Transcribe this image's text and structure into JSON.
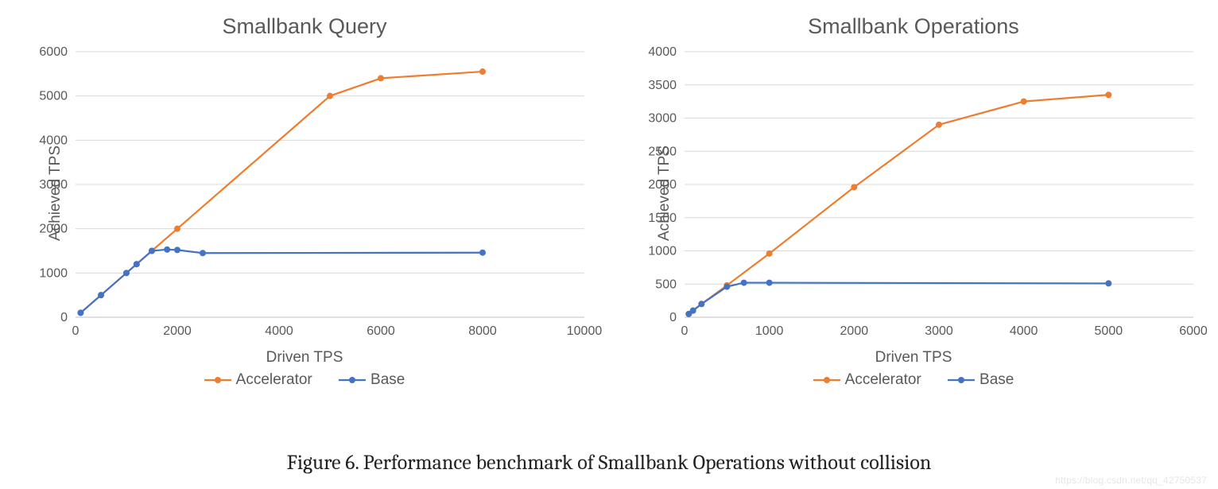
{
  "caption": "Figure 6. Performance benchmark of Smallbank Operations without collision",
  "watermark": "https://blog.csdn.net/qq_42750537",
  "colors": {
    "accelerator": "#ed7d31",
    "base": "#4472c4",
    "grid": "#d9d9d9",
    "axis_text": "#595959",
    "plot_border": "#bfbfbf",
    "page_bg": "#ffffff"
  },
  "legend": {
    "accelerator": "Accelerator",
    "base": "Base"
  },
  "chart_left": {
    "title": "Smallbank Query",
    "xlabel": "Driven TPS",
    "ylabel": "Achieved TPS",
    "type": "line",
    "xlim": [
      0,
      10000
    ],
    "ylim": [
      0,
      6000
    ],
    "xtick_step": 2000,
    "ytick_step": 1000,
    "xticks": [
      0,
      2000,
      4000,
      6000,
      8000,
      10000
    ],
    "yticks": [
      0,
      1000,
      2000,
      3000,
      4000,
      5000,
      6000
    ],
    "tick_fontsize": 16,
    "title_fontsize": 27,
    "label_fontsize": 19,
    "line_width": 2.2,
    "marker_radius": 4,
    "grid_color": "#d9d9d9",
    "background_color": "#ffffff",
    "series": {
      "accelerator": {
        "label": "Accelerator",
        "color": "#ed7d31",
        "marker": "circle",
        "data": [
          {
            "x": 100,
            "y": 100
          },
          {
            "x": 500,
            "y": 500
          },
          {
            "x": 1000,
            "y": 1000
          },
          {
            "x": 1200,
            "y": 1200
          },
          {
            "x": 1500,
            "y": 1500
          },
          {
            "x": 2000,
            "y": 2000
          },
          {
            "x": 5000,
            "y": 5000
          },
          {
            "x": 6000,
            "y": 5400
          },
          {
            "x": 8000,
            "y": 5550
          }
        ]
      },
      "base": {
        "label": "Base",
        "color": "#4472c4",
        "marker": "circle",
        "data": [
          {
            "x": 100,
            "y": 100
          },
          {
            "x": 500,
            "y": 500
          },
          {
            "x": 1000,
            "y": 1000
          },
          {
            "x": 1200,
            "y": 1200
          },
          {
            "x": 1500,
            "y": 1500
          },
          {
            "x": 1800,
            "y": 1530
          },
          {
            "x": 2000,
            "y": 1520
          },
          {
            "x": 2500,
            "y": 1450
          },
          {
            "x": 8000,
            "y": 1460
          }
        ]
      }
    }
  },
  "chart_right": {
    "title": "Smallbank Operations",
    "xlabel": "Driven TPS",
    "ylabel": "Achieved TPS",
    "type": "line",
    "xlim": [
      0,
      6000
    ],
    "ylim": [
      0,
      4000
    ],
    "xtick_step": 1000,
    "ytick_step": 500,
    "xticks": [
      0,
      1000,
      2000,
      3000,
      4000,
      5000,
      6000
    ],
    "yticks": [
      0,
      500,
      1000,
      1500,
      2000,
      2500,
      3000,
      3500,
      4000
    ],
    "tick_fontsize": 16,
    "title_fontsize": 27,
    "label_fontsize": 19,
    "line_width": 2.2,
    "marker_radius": 4,
    "grid_color": "#d9d9d9",
    "background_color": "#ffffff",
    "series": {
      "accelerator": {
        "label": "Accelerator",
        "color": "#ed7d31",
        "marker": "circle",
        "data": [
          {
            "x": 50,
            "y": 50
          },
          {
            "x": 100,
            "y": 100
          },
          {
            "x": 200,
            "y": 200
          },
          {
            "x": 500,
            "y": 480
          },
          {
            "x": 1000,
            "y": 960
          },
          {
            "x": 2000,
            "y": 1960
          },
          {
            "x": 3000,
            "y": 2900
          },
          {
            "x": 4000,
            "y": 3250
          },
          {
            "x": 5000,
            "y": 3350
          }
        ]
      },
      "base": {
        "label": "Base",
        "color": "#4472c4",
        "marker": "circle",
        "data": [
          {
            "x": 50,
            "y": 50
          },
          {
            "x": 100,
            "y": 100
          },
          {
            "x": 200,
            "y": 200
          },
          {
            "x": 500,
            "y": 460
          },
          {
            "x": 700,
            "y": 520
          },
          {
            "x": 1000,
            "y": 520
          },
          {
            "x": 5000,
            "y": 510
          }
        ]
      }
    }
  }
}
